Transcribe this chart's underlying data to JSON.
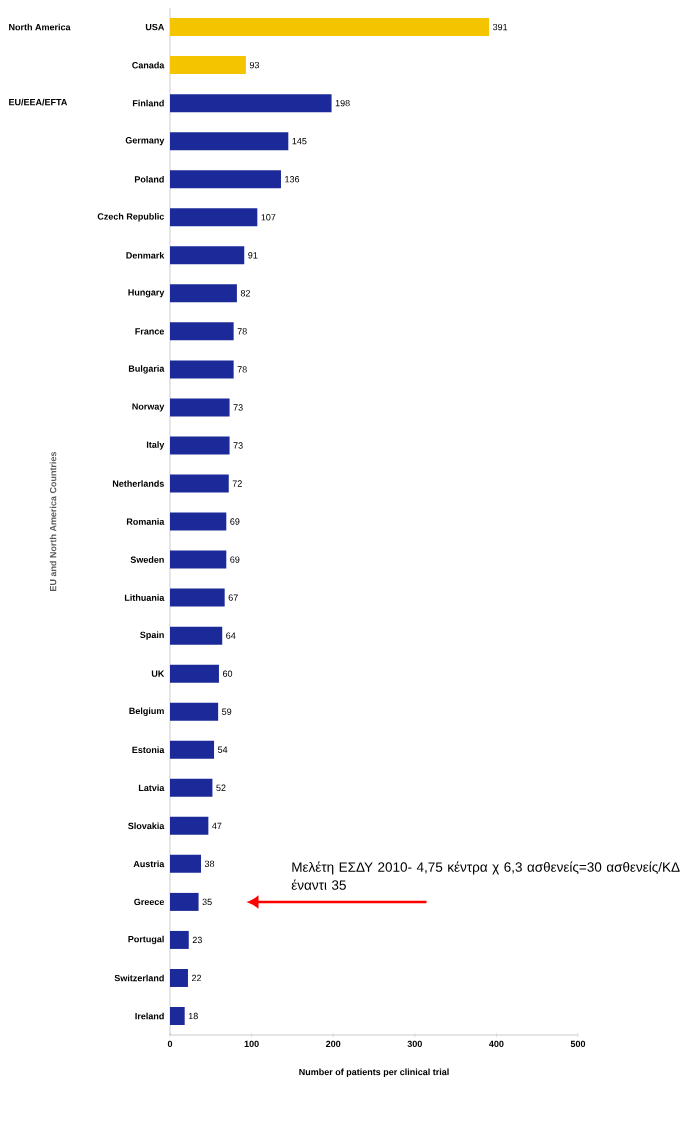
{
  "chart_data": {
    "type": "bar",
    "orientation": "horizontal",
    "categories": [
      "USA",
      "Canada",
      "Finland",
      "Germany",
      "Poland",
      "Czech Republic",
      "Denmark",
      "Hungary",
      "France",
      "Bulgaria",
      "Norway",
      "Italy",
      "Netherlands",
      "Romania",
      "Sweden",
      "Lithuania",
      "Spain",
      "UK",
      "Belgium",
      "Estonia",
      "Latvia",
      "Slovakia",
      "Austria",
      "Greece",
      "Portugal",
      "Switzerland",
      "Ireland"
    ],
    "values": [
      391,
      93,
      198,
      145,
      136,
      107,
      91,
      82,
      78,
      78,
      73,
      73,
      72,
      69,
      69,
      67,
      64,
      60,
      59,
      54,
      52,
      47,
      38,
      35,
      23,
      22,
      18
    ],
    "colors": [
      "#f5c400",
      "#f5c400",
      "#1c2a99",
      "#1c2a99",
      "#1c2a99",
      "#1c2a99",
      "#1c2a99",
      "#1c2a99",
      "#1c2a99",
      "#1c2a99",
      "#1c2a99",
      "#1c2a99",
      "#1c2a99",
      "#1c2a99",
      "#1c2a99",
      "#1c2a99",
      "#1c2a99",
      "#1c2a99",
      "#1c2a99",
      "#1c2a99",
      "#1c2a99",
      "#1c2a99",
      "#1c2a99",
      "#1c2a99",
      "#1c2a99",
      "#1c2a99",
      "#1c2a99"
    ],
    "xlim": [
      0,
      500
    ],
    "xticks": [
      0,
      100,
      200,
      300,
      400,
      500
    ],
    "xlabel": "Number of patients per clinical trial",
    "ylabel": "EU and North America Countries",
    "data_labels": true,
    "annotations": [
      "North America",
      "EU/EEA/EFTA",
      "Μελέτη ΕΣΔΥ 2010- 4,75 κέντρα χ 6,3 ασθενείς=30 ασθενείς/ΚΔ έναντι 35"
    ]
  }
}
